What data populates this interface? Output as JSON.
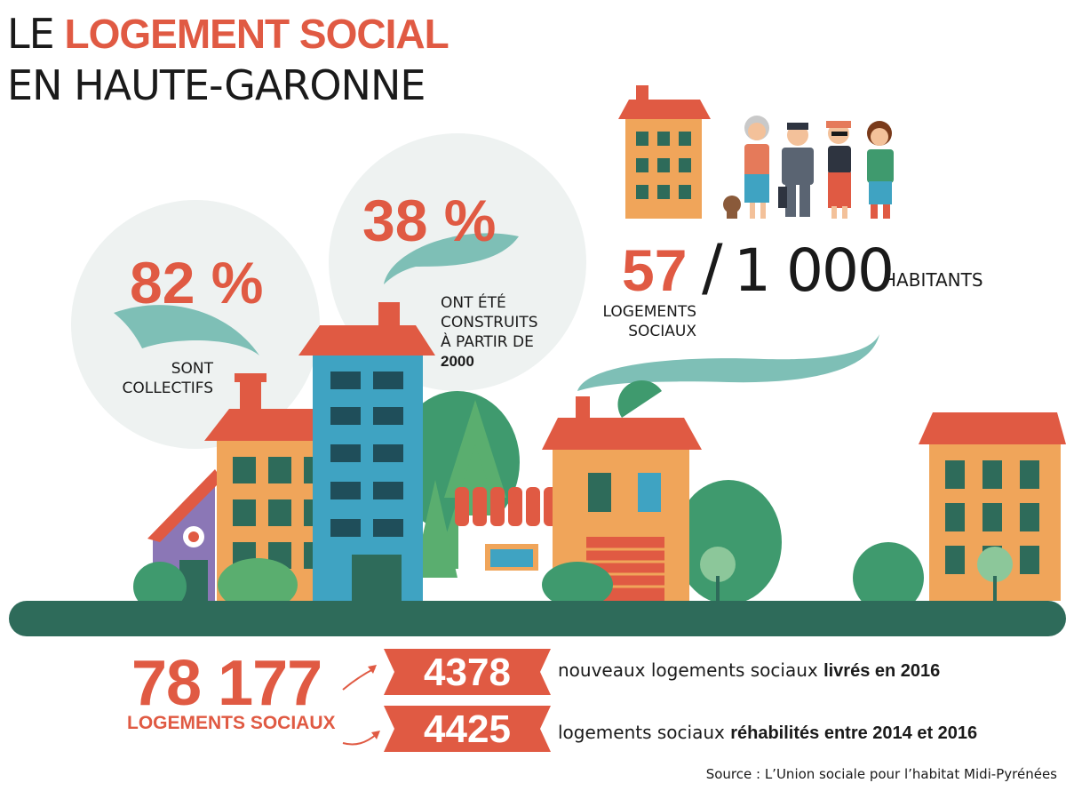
{
  "title": {
    "line1_prefix": "LE",
    "line1_highlight": "LOGEMENT SOCIAL",
    "line2": "EN HAUTE-GARONNE"
  },
  "stats": {
    "collectifs": {
      "value": "82 %",
      "label_line1": "SONT",
      "label_line2": "COLLECTIFS"
    },
    "construits": {
      "value": "38 %",
      "label_line1": "ONT ÉTÉ",
      "label_line2": "CONSTRUITS",
      "label_line3": "À PARTIR DE",
      "label_line4": "2000"
    },
    "ratio": {
      "value": "57",
      "slash": "/",
      "denominator": "1 000",
      "denominator_unit": "HABITANTS",
      "label_line1": "LOGEMENTS",
      "label_line2": "SOCIAUX"
    }
  },
  "totals": {
    "count": "78 177",
    "label": "LOGEMENTS SOCIAUX",
    "items": [
      {
        "value": "4378",
        "desc_prefix": "nouveaux logements sociaux ",
        "desc_bold": "livrés en 2016"
      },
      {
        "value": "4425",
        "desc_prefix": "logements sociaux ",
        "desc_bold": "réhabilités entre 2014 et 2016"
      }
    ]
  },
  "source": "Source : L’Union sociale pour l’habitat Midi-Pyrénées",
  "colors": {
    "accent_red": "#e05a43",
    "teal": "#7ebfb6",
    "ground": "#2e6b5a",
    "bubble": "#eef2f1",
    "building_orange": "#f0a55a",
    "building_blue": "#3fa3c2",
    "tree_green": "#3f9a6e"
  }
}
